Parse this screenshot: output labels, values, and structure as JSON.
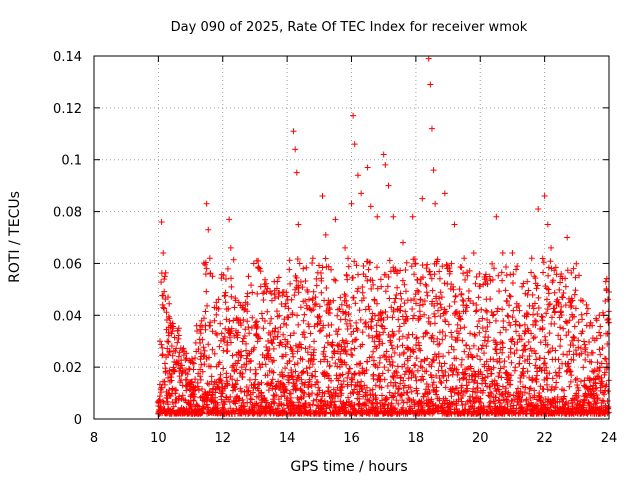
{
  "chart_data": {
    "type": "scatter",
    "title": "Day 090 of 2025, Rate Of TEC Index for receiver wmok",
    "xlabel": "GPS time / hours",
    "ylabel": "ROTI / TECUs",
    "xlim": [
      8,
      24
    ],
    "ylim": [
      0,
      0.14
    ],
    "xticks": [
      "8",
      "10",
      "12",
      "14",
      "16",
      "18",
      "20",
      "22",
      "24"
    ],
    "yticks": [
      "0",
      "0.02",
      "0.04",
      "0.06",
      "0.08",
      "0.1",
      "0.12",
      "0.14"
    ],
    "grid": true,
    "marker": "plus",
    "colors": {
      "series": "#ff0000",
      "grid": "#a0a0a0",
      "axis": "#000000"
    },
    "series": [
      {
        "points": [
          [
            10.0,
            0.005
          ],
          [
            10.05,
            0.03
          ],
          [
            10.1,
            0.076
          ],
          [
            10.15,
            0.064
          ],
          [
            10.2,
            0.055
          ],
          [
            10.3,
            0.047
          ],
          [
            10.45,
            0.035
          ],
          [
            10.6,
            0.034
          ],
          [
            10.8,
            0.026
          ],
          [
            11.0,
            0.022
          ],
          [
            11.3,
            0.036
          ],
          [
            11.5,
            0.083
          ],
          [
            11.55,
            0.073
          ],
          [
            11.6,
            0.062
          ],
          [
            11.8,
            0.045
          ],
          [
            12.1,
            0.054
          ],
          [
            12.2,
            0.077
          ],
          [
            12.25,
            0.066
          ],
          [
            12.5,
            0.045
          ],
          [
            12.8,
            0.055
          ],
          [
            13.1,
            0.061
          ],
          [
            13.3,
            0.052
          ],
          [
            13.6,
            0.053
          ],
          [
            13.9,
            0.049
          ],
          [
            14.2,
            0.111
          ],
          [
            14.25,
            0.104
          ],
          [
            14.3,
            0.095
          ],
          [
            14.35,
            0.075
          ],
          [
            14.5,
            0.058
          ],
          [
            14.8,
            0.062
          ],
          [
            15.1,
            0.086
          ],
          [
            15.2,
            0.071
          ],
          [
            15.5,
            0.077
          ],
          [
            15.8,
            0.066
          ],
          [
            16.0,
            0.083
          ],
          [
            16.05,
            0.117
          ],
          [
            16.1,
            0.106
          ],
          [
            16.2,
            0.094
          ],
          [
            16.3,
            0.087
          ],
          [
            16.5,
            0.097
          ],
          [
            16.6,
            0.082
          ],
          [
            16.8,
            0.078
          ],
          [
            17.0,
            0.102
          ],
          [
            17.05,
            0.098
          ],
          [
            17.15,
            0.09
          ],
          [
            17.3,
            0.078
          ],
          [
            17.6,
            0.068
          ],
          [
            17.9,
            0.078
          ],
          [
            18.2,
            0.085
          ],
          [
            18.4,
            0.139
          ],
          [
            18.45,
            0.129
          ],
          [
            18.5,
            0.112
          ],
          [
            18.55,
            0.096
          ],
          [
            18.6,
            0.083
          ],
          [
            18.9,
            0.087
          ],
          [
            19.2,
            0.075
          ],
          [
            19.5,
            0.062
          ],
          [
            19.8,
            0.064
          ],
          [
            20.2,
            0.054
          ],
          [
            20.5,
            0.078
          ],
          [
            20.7,
            0.064
          ],
          [
            21.0,
            0.064
          ],
          [
            21.3,
            0.051
          ],
          [
            21.6,
            0.062
          ],
          [
            21.8,
            0.081
          ],
          [
            22.0,
            0.086
          ],
          [
            22.1,
            0.075
          ],
          [
            22.2,
            0.066
          ],
          [
            22.5,
            0.055
          ],
          [
            22.7,
            0.07
          ],
          [
            22.9,
            0.058
          ],
          [
            23.3,
            0.044
          ],
          [
            23.7,
            0.04
          ],
          [
            23.9,
            0.053
          ],
          [
            24.0,
            0.049
          ]
        ]
      }
    ]
  }
}
